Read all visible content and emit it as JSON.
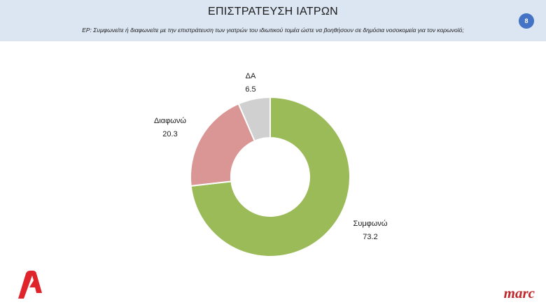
{
  "header": {
    "title": "ΕΠΙΣΤΡΑΤΕΥΣΗ ΙΑΤΡΩΝ",
    "subtitle": "ΕΡ:  Συμφωνείτε ή διαφωνείτε με την επιστράτευση των γιατρών του ιδιωτικού τομέα ώστε να βοηθήσουν σε δημόσια νοσοκομεία για τον κορωνοϊό;",
    "page_number": "8"
  },
  "colors": {
    "header_bg": "#dce6f2",
    "badge": "#4472c4",
    "agree": "#9bbb59",
    "disagree": "#d99694",
    "dk": "#d0d0d0",
    "alpha_logo": "#e0242c",
    "marc_logo": "#c0282d"
  },
  "logos": {
    "alpha": "Alpha",
    "marc": "marc"
  },
  "chart_data": {
    "type": "pie",
    "donut": true,
    "labels": [
      "Συμφωνώ",
      "Διαφωνώ",
      "ΔΑ"
    ],
    "values": [
      73.2,
      20.3,
      6.5
    ],
    "colors": [
      "#9bbb59",
      "#d99694",
      "#d0d0d0"
    ]
  }
}
